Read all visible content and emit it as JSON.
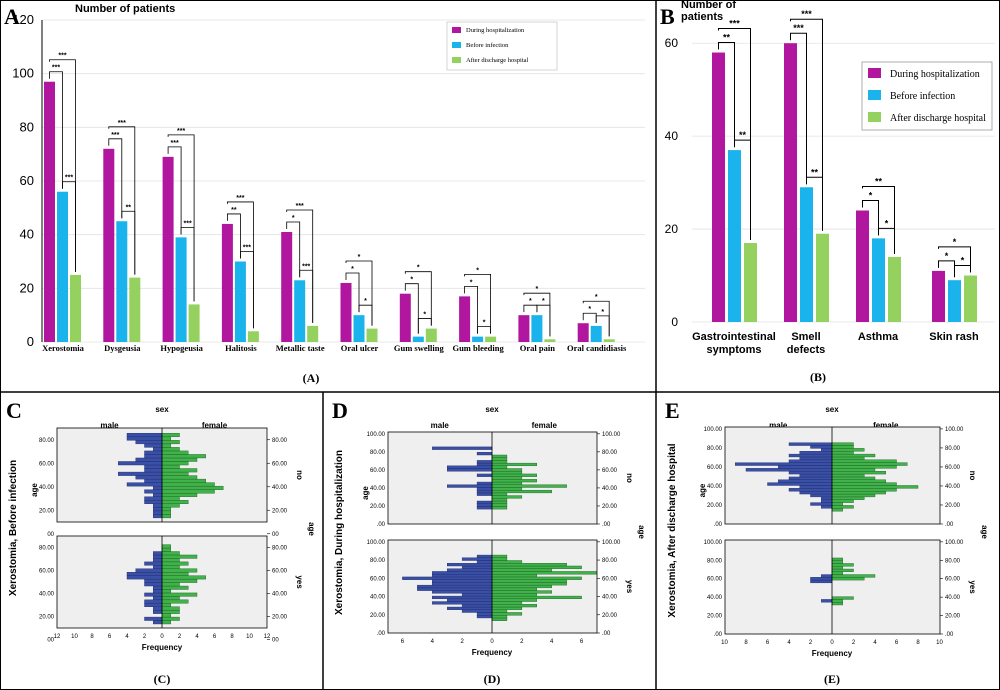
{
  "colors": {
    "during": "#b1169f",
    "before": "#1ab3ec",
    "after": "#95d15e",
    "male": "#3a4fa6",
    "female": "#3fb24a",
    "panel_bg": "#efefef"
  },
  "panel_labels": [
    "A",
    "B",
    "C",
    "D",
    "E"
  ],
  "captions": [
    "(A)",
    "(B)",
    "(C)",
    "(D)",
    "(E)"
  ],
  "chart_data": [
    {
      "id": "A",
      "type": "bar",
      "title": "Number of patients",
      "ylim": [
        0,
        120
      ],
      "yticks": [
        "0",
        "20",
        "40",
        "60",
        "80",
        "100",
        "120"
      ],
      "categories": [
        "Xerostomia",
        "Dysgeusia",
        "Hypogeusia",
        "Halitosis",
        "Metallic taste",
        "Oral ulcer",
        "Gum swelling",
        "Gum bleeding",
        "Oral pain",
        "Oral candidiasis"
      ],
      "series": [
        {
          "name": "During hospitalization",
          "values": [
            97,
            72,
            69,
            44,
            41,
            22,
            18,
            17,
            10,
            7
          ]
        },
        {
          "name": "Before infection",
          "values": [
            56,
            45,
            39,
            30,
            23,
            10,
            2,
            2,
            10,
            6
          ]
        },
        {
          "name": "After discharge hospital",
          "values": [
            25,
            24,
            14,
            4,
            6,
            5,
            5,
            2,
            1,
            1
          ]
        }
      ],
      "significance": [
        {
          "top": "***",
          "db": "***",
          "ba": "***"
        },
        {
          "top": "***",
          "db": "***",
          "ba": "**"
        },
        {
          "top": "***",
          "db": "***",
          "ba": "***"
        },
        {
          "top": "***",
          "db": "**",
          "ba": "***"
        },
        {
          "top": "***",
          "db": "*",
          "ba": "***"
        },
        {
          "top": "*",
          "db": "*",
          "ba": "*"
        },
        {
          "top": "*",
          "db": "*",
          "ba": "*"
        },
        {
          "top": "*",
          "db": "*",
          "ba": "*"
        },
        {
          "top": "*",
          "db": "*",
          "ba": "*"
        },
        {
          "top": "*",
          "db": "*",
          "ba": "*"
        }
      ],
      "legend": "top-right",
      "grid": true
    },
    {
      "id": "B",
      "type": "bar",
      "title": "Number of patients",
      "ylim": [
        0,
        65
      ],
      "yticks": [
        "0",
        "20",
        "40",
        "60"
      ],
      "categories": [
        [
          "Gastrointestinal",
          "symptoms"
        ],
        [
          "Smell",
          "defects"
        ],
        [
          "Asthma"
        ],
        [
          "Skin rash"
        ]
      ],
      "series": [
        {
          "name": "During hospitalization",
          "values": [
            58,
            60,
            24,
            11
          ]
        },
        {
          "name": "Before infection",
          "values": [
            37,
            29,
            18,
            9
          ]
        },
        {
          "name": "After discharge hospital",
          "values": [
            17,
            19,
            14,
            10
          ]
        }
      ],
      "significance": [
        {
          "top": "***",
          "db": "**",
          "ba": "**"
        },
        {
          "top": "***",
          "db": "***",
          "ba": "**"
        },
        {
          "top": "**",
          "db": "*",
          "ba": "*"
        },
        {
          "top": "*",
          "db": "*",
          "ba": "*"
        }
      ],
      "legend": "top-right",
      "grid": true
    },
    {
      "id": "C",
      "type": "bar",
      "subtype": "population-pyramid",
      "title": "sex",
      "left_label": "male",
      "right_label": "female",
      "ylabel": "Xerostomia, Before infection",
      "row_axis_label": "age",
      "xlabel": "Frequency",
      "row_labels": [
        "no",
        "yes"
      ],
      "age_ticks": [
        "00",
        "20.00",
        "40.00",
        "60.00",
        "80.00"
      ],
      "age_range": [
        10,
        90
      ],
      "xticks": [
        "12",
        "10",
        "8",
        "6",
        "4",
        "2",
        "0",
        "2",
        "4",
        "6",
        "8",
        "10",
        "12"
      ],
      "xmax": 12,
      "ages": [
        15,
        18,
        21,
        24,
        27,
        30,
        33,
        36,
        39,
        42,
        45,
        48,
        51,
        54,
        57,
        60,
        63,
        66,
        69,
        72,
        75,
        78,
        81,
        84
      ],
      "no": {
        "male": [
          1,
          1,
          1,
          1,
          2,
          2,
          1,
          2,
          1,
          4,
          2,
          3,
          5,
          2,
          2,
          5,
          3,
          2,
          2,
          1,
          2,
          3,
          4,
          4
        ],
        "female": [
          1,
          1,
          1,
          2,
          3,
          2,
          4,
          6,
          7,
          6,
          5,
          4,
          3,
          4,
          2,
          3,
          4,
          5,
          3,
          2,
          1,
          2,
          1,
          2
        ]
      },
      "yes": {
        "male": [
          1,
          2,
          0,
          1,
          1,
          2,
          2,
          1,
          2,
          1,
          1,
          2,
          2,
          4,
          4,
          3,
          1,
          2,
          1,
          1,
          1,
          0,
          0,
          0
        ],
        "female": [
          1,
          2,
          1,
          2,
          2,
          1,
          3,
          2,
          4,
          1,
          3,
          2,
          4,
          5,
          3,
          4,
          2,
          3,
          2,
          4,
          2,
          1,
          1,
          0
        ]
      }
    },
    {
      "id": "D",
      "type": "bar",
      "subtype": "population-pyramid",
      "title": "sex",
      "left_label": "male",
      "right_label": "female",
      "ylabel": "Xerostomia, During hospitalization",
      "row_axis_label": "age",
      "xlabel": "Frequency",
      "row_labels": [
        "no",
        "yes"
      ],
      "age_ticks": [
        ".00",
        "20.00",
        "40.00",
        "60.00",
        "80.00",
        "100.00"
      ],
      "age_range": [
        0,
        102
      ],
      "xticks": [
        "6",
        "4",
        "2",
        "0",
        "2",
        "4",
        "6"
      ],
      "xmax": 7,
      "ages": [
        15,
        18,
        21,
        24,
        27,
        30,
        33,
        36,
        39,
        42,
        45,
        48,
        51,
        54,
        57,
        60,
        63,
        66,
        69,
        72,
        75,
        78,
        81,
        84
      ],
      "no": {
        "male": [
          0,
          1,
          1,
          1,
          0,
          0,
          1,
          1,
          1,
          3,
          1,
          0,
          0,
          1,
          0,
          3,
          3,
          1,
          1,
          0,
          0,
          1,
          0,
          4
        ],
        "female": [
          0,
          1,
          1,
          1,
          1,
          2,
          1,
          4,
          2,
          5,
          2,
          3,
          2,
          3,
          2,
          2,
          1,
          3,
          1,
          1,
          1,
          0,
          0,
          0
        ]
      },
      "yes": {
        "male": [
          0,
          1,
          1,
          2,
          3,
          2,
          4,
          3,
          4,
          2,
          4,
          5,
          5,
          4,
          4,
          6,
          4,
          4,
          3,
          2,
          3,
          1,
          2,
          1
        ],
        "female": [
          1,
          1,
          2,
          1,
          2,
          3,
          2,
          3,
          6,
          3,
          4,
          3,
          4,
          5,
          5,
          6,
          3,
          7,
          4,
          6,
          5,
          2,
          1,
          1
        ]
      }
    },
    {
      "id": "E",
      "type": "bar",
      "subtype": "population-pyramid",
      "title": "sex",
      "left_label": "male",
      "right_label": "female",
      "ylabel": "Xerostomia, After discharge hospital",
      "row_axis_label": "age",
      "xlabel": "Frequency",
      "row_labels": [
        "no",
        "yes"
      ],
      "age_ticks": [
        ".00",
        "20.00",
        "40.00",
        "60.00",
        "80.00",
        "100.00"
      ],
      "age_range": [
        0,
        102
      ],
      "xticks": [
        "10",
        "8",
        "6",
        "4",
        "2",
        "0",
        "2",
        "4",
        "6",
        "8",
        "10"
      ],
      "xmax": 10,
      "ages": [
        15,
        18,
        21,
        24,
        27,
        30,
        33,
        36,
        39,
        42,
        45,
        48,
        51,
        54,
        57,
        60,
        63,
        66,
        69,
        72,
        75,
        78,
        81,
        84
      ],
      "no": {
        "male": [
          0,
          1,
          2,
          1,
          1,
          2,
          3,
          4,
          3,
          6,
          5,
          4,
          3,
          4,
          8,
          5,
          9,
          4,
          3,
          4,
          3,
          1,
          2,
          4
        ],
        "female": [
          1,
          2,
          1,
          2,
          3,
          4,
          5,
          6,
          8,
          6,
          5,
          4,
          3,
          5,
          4,
          6,
          7,
          6,
          3,
          4,
          2,
          3,
          2,
          2
        ]
      },
      "yes": {
        "male": [
          0,
          0,
          0,
          0,
          0,
          0,
          0,
          1,
          0,
          0,
          0,
          0,
          0,
          0,
          2,
          2,
          1,
          0,
          0,
          0,
          0,
          0,
          0,
          0
        ],
        "female": [
          0,
          0,
          0,
          0,
          0,
          0,
          1,
          1,
          2,
          0,
          0,
          0,
          0,
          0,
          0,
          3,
          4,
          1,
          2,
          1,
          2,
          1,
          1,
          0
        ]
      }
    }
  ]
}
